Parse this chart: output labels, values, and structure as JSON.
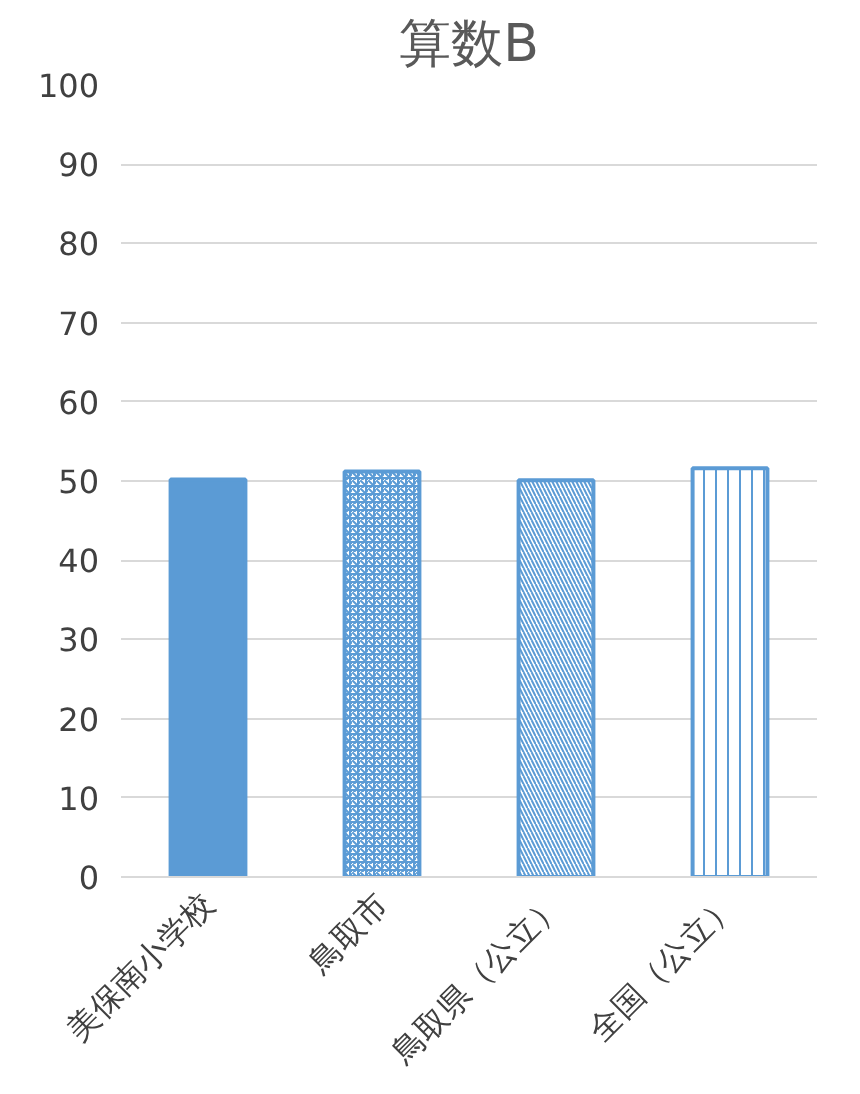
{
  "chart_data": {
    "type": "bar",
    "title": "算数B",
    "categories": [
      "美保南小学校",
      "鳥取市",
      "鳥取県（公立）",
      "全国（公立）"
    ],
    "values": [
      50.2,
      51.2,
      50.1,
      51.6
    ],
    "color": "#5b9bd5",
    "ylim": [
      0,
      100
    ],
    "yticks": [
      0,
      10,
      20,
      30,
      40,
      50,
      60,
      70,
      80,
      90,
      100
    ],
    "grid": "y"
  }
}
